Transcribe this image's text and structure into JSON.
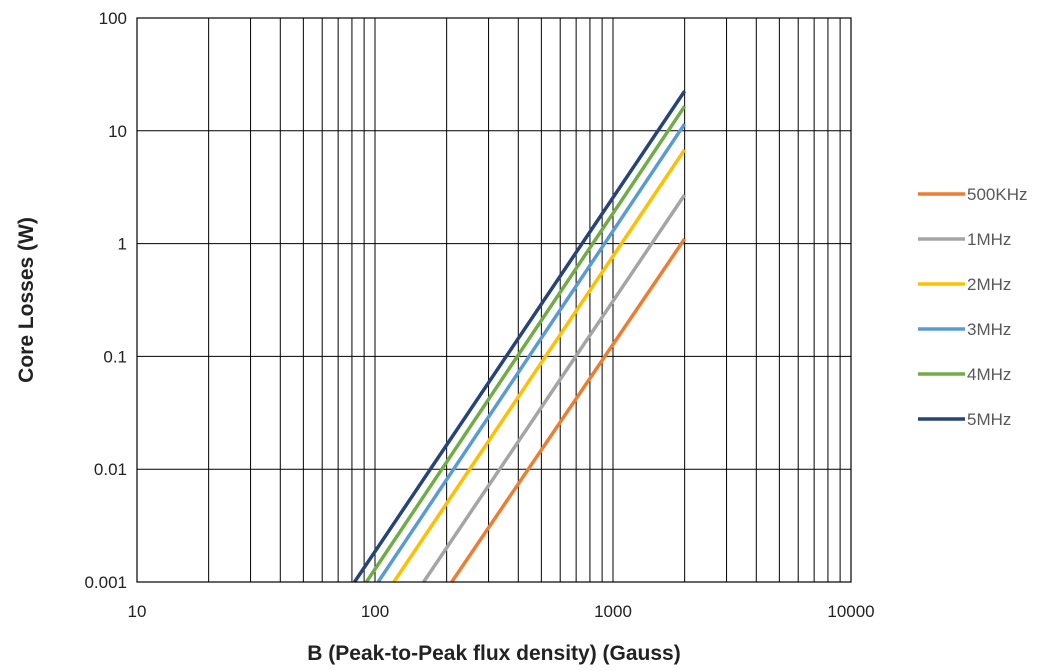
{
  "chart_data": {
    "type": "line",
    "title": "",
    "xlabel": "B (Peak-to-Peak flux density) (Gauss)",
    "ylabel": "Core Losses (W)",
    "xscale": "log",
    "yscale": "log",
    "xlim": [
      10,
      10000
    ],
    "ylim": [
      0.001,
      100
    ],
    "x_ticks": [
      "10",
      "100",
      "1000",
      "10000"
    ],
    "y_ticks": [
      "0.001",
      "0.01",
      "0.1",
      "1",
      "10",
      "100"
    ],
    "grid": true,
    "legend_position": "right",
    "series": [
      {
        "name": "500KHz",
        "color": "#ED7D31",
        "x": [
          210,
          2000
        ],
        "y": [
          0.001,
          1.1
        ]
      },
      {
        "name": "1MHz",
        "color": "#A5A5A5",
        "x": [
          160,
          2000
        ],
        "y": [
          0.001,
          2.7
        ]
      },
      {
        "name": "2MHz",
        "color": "#FFC000",
        "x": [
          120,
          2000
        ],
        "y": [
          0.001,
          6.8
        ]
      },
      {
        "name": "3MHz",
        "color": "#5B9BD5",
        "x": [
          103,
          2000
        ],
        "y": [
          0.001,
          11.5
        ]
      },
      {
        "name": "4MHz",
        "color": "#70AD47",
        "x": [
          92,
          2000
        ],
        "y": [
          0.001,
          16.5
        ]
      },
      {
        "name": "5MHz",
        "color": "#264478",
        "x": [
          82,
          2000
        ],
        "y": [
          0.001,
          22.5
        ]
      }
    ]
  }
}
